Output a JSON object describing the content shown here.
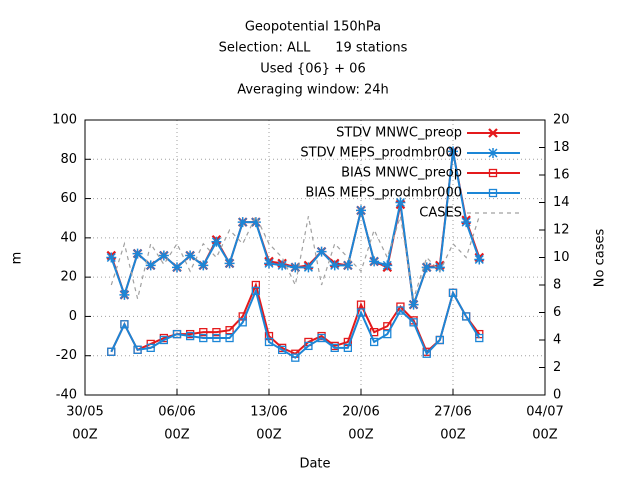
{
  "chart_data": {
    "type": "line",
    "title": [
      "Geopotential 150hPa",
      "Selection: ALL      19 stations",
      "Used {06} + 06",
      "Averaging window: 24h"
    ],
    "x_label": "Date",
    "y_label": "m",
    "y2_label": "No cases",
    "x": [
      "06-01",
      "06-02",
      "06-03",
      "06-04",
      "06-05",
      "06-06",
      "06-07",
      "06-08",
      "06-09",
      "06-10",
      "06-11",
      "06-12",
      "06-13",
      "06-14",
      "06-15",
      "06-16",
      "06-17",
      "06-18",
      "06-19",
      "06-20",
      "06-21",
      "06-22",
      "06-23",
      "06-24",
      "06-25",
      "06-26",
      "06-27",
      "06-28",
      "06-29"
    ],
    "xlim": [
      "05-30",
      "07-04"
    ],
    "xticks": [
      {
        "value": "05-30",
        "label": [
          "30/05",
          "00Z"
        ]
      },
      {
        "value": "06-06",
        "label": [
          "06/06",
          "00Z"
        ]
      },
      {
        "value": "06-13",
        "label": [
          "13/06",
          "00Z"
        ]
      },
      {
        "value": "06-20",
        "label": [
          "20/06",
          "00Z"
        ]
      },
      {
        "value": "06-27",
        "label": [
          "27/06",
          "00Z"
        ]
      },
      {
        "value": "07-04",
        "label": [
          "04/07",
          "00Z"
        ]
      }
    ],
    "ylim": [
      -40,
      100
    ],
    "yticks": [
      -40,
      -20,
      0,
      20,
      40,
      60,
      80,
      100
    ],
    "y2lim": [
      0,
      20
    ],
    "y2ticks": [
      0,
      2,
      4,
      6,
      8,
      10,
      12,
      14,
      16,
      18,
      20
    ],
    "grid": true,
    "legend": "top-right",
    "series": [
      {
        "name": "STDV MNWC_preop",
        "color": "#e41a1c",
        "marker": "x",
        "values": [
          31,
          11,
          32,
          26,
          31,
          25,
          31,
          26,
          39,
          27,
          48,
          48,
          28,
          27,
          25,
          26,
          33,
          27,
          26,
          54,
          28,
          25,
          57,
          6,
          25,
          26,
          84,
          49,
          30
        ]
      },
      {
        "name": "STDV MEPS_prodmbr000",
        "color": "#1c86d6",
        "marker": "star",
        "values": [
          30,
          11,
          32,
          26,
          31,
          25,
          31,
          26,
          38,
          27,
          48,
          48,
          27,
          26,
          25,
          25,
          33,
          26,
          26,
          54,
          28,
          26,
          58,
          6,
          25,
          25,
          84,
          48,
          29
        ]
      },
      {
        "name": "BIAS MNWC_preop",
        "color": "#e41a1c",
        "marker": "square",
        "values": [
          -18,
          -4,
          -17,
          -14,
          -11,
          -9,
          -9,
          -8,
          -8,
          -7,
          0,
          16,
          -10,
          -16,
          -19,
          -13,
          -10,
          -15,
          -13,
          6,
          -8,
          -5,
          5,
          -2,
          -18,
          -12,
          12,
          0,
          -9
        ]
      },
      {
        "name": "BIAS MEPS_prodmbr000",
        "color": "#1c86d6",
        "marker": "square",
        "values": [
          -18,
          -4,
          -17,
          -16,
          -12,
          -9,
          -10,
          -11,
          -11,
          -11,
          -3,
          13,
          -13,
          -17,
          -21,
          -15,
          -11,
          -16,
          -16,
          2,
          -13,
          -9,
          3,
          -3,
          -19,
          -12,
          12,
          0,
          -11
        ]
      },
      {
        "name": "CASES",
        "color": "#a0a0a0",
        "marker": "none",
        "axis": "y2",
        "values": [
          8,
          11,
          7,
          11,
          9.5,
          11,
          9,
          11,
          10,
          12,
          11,
          13,
          11,
          10,
          8,
          13,
          8,
          11,
          10,
          9,
          12,
          10,
          13,
          7,
          10,
          9,
          11,
          10,
          13
        ]
      }
    ]
  }
}
